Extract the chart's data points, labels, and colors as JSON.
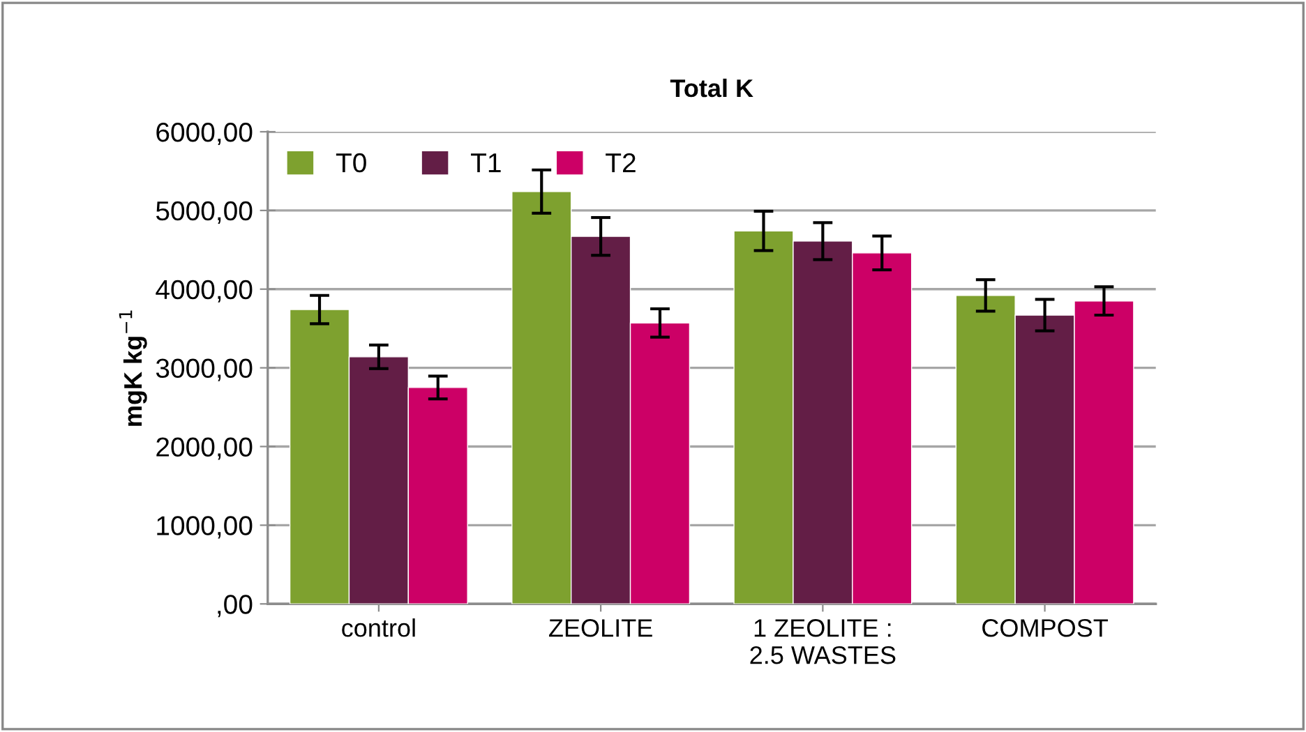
{
  "chart_data": {
    "type": "bar",
    "title": "Total K",
    "ylabel": "mgK kg$^{−1}$",
    "categories": [
      "control",
      "ZEOLITE",
      "1 ZEOLITE :\n2.5 WASTES",
      "COMPOST"
    ],
    "series": [
      {
        "name": "T0",
        "color": "#7ea12f",
        "values": [
          3740,
          5240,
          4740,
          3920
        ],
        "errors": [
          180,
          275,
          250,
          200
        ]
      },
      {
        "name": "T1",
        "color": "#631e46",
        "values": [
          3140,
          4670,
          4610,
          3670
        ],
        "errors": [
          150,
          240,
          235,
          200
        ]
      },
      {
        "name": "T2",
        "color": "#cc0066",
        "values": [
          2750,
          3570,
          4460,
          3850
        ],
        "errors": [
          145,
          180,
          215,
          180
        ]
      }
    ],
    "ylim": [
      0,
      6000
    ],
    "yticks": [
      {
        "value": 0,
        "label": ",00"
      },
      {
        "value": 1000,
        "label": "1000,00"
      },
      {
        "value": 2000,
        "label": "2000,00"
      },
      {
        "value": 3000,
        "label": "3000,00"
      },
      {
        "value": 4000,
        "label": "4000,00"
      },
      {
        "value": 5000,
        "label": "5000,00"
      },
      {
        "value": 6000,
        "label": "6000,00"
      }
    ],
    "grid": "y",
    "legend": "top left"
  }
}
